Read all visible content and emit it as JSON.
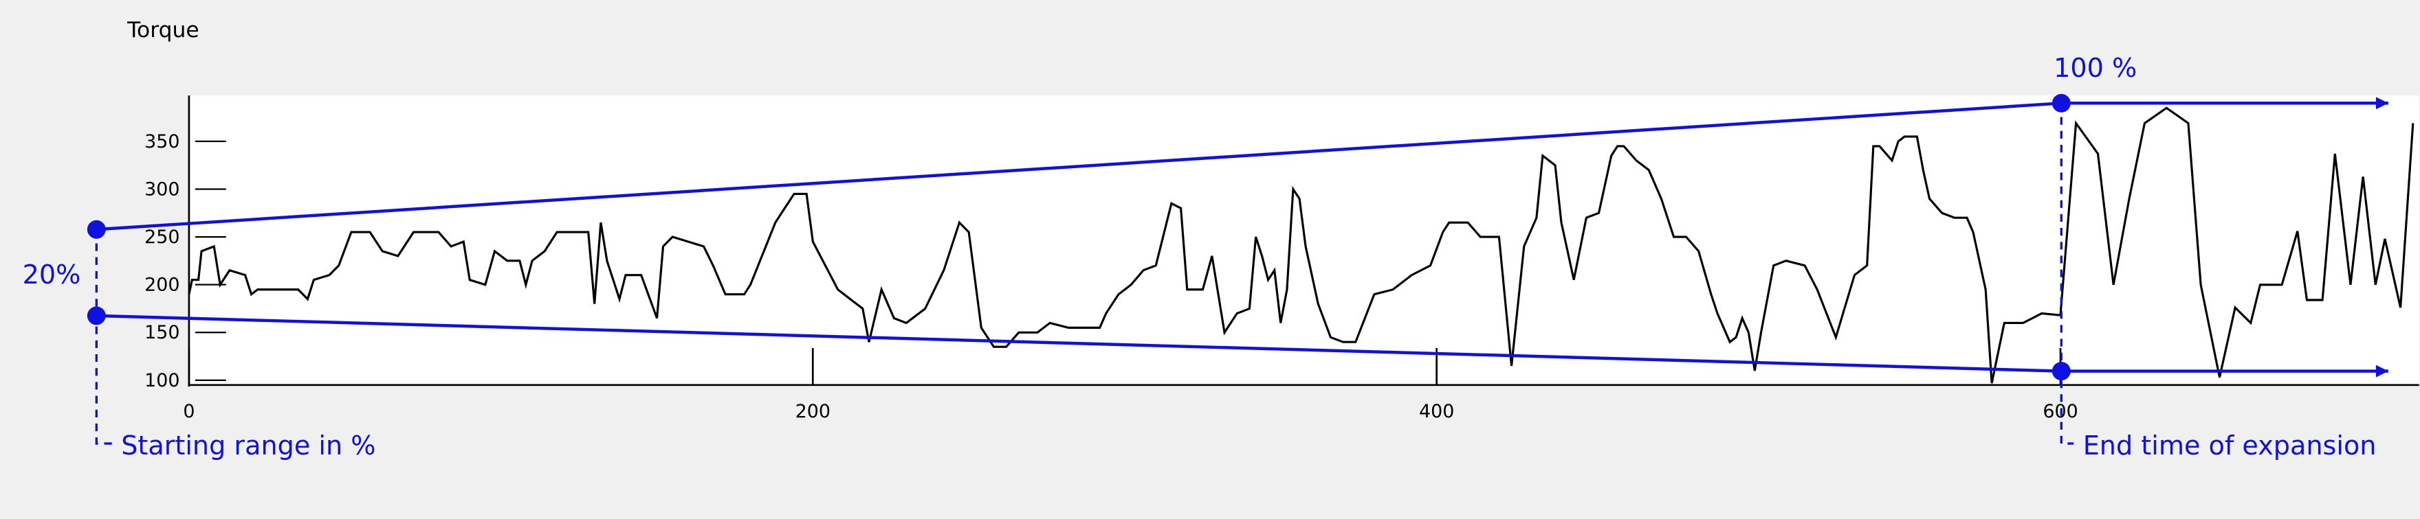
{
  "chart_data": {
    "type": "line",
    "title": "Torque",
    "annotations": [
      "20%",
      "100 %",
      "Starting range in %",
      "End time of expansion"
    ],
    "xlim": [
      0,
      715
    ],
    "xticks": [
      0,
      200,
      400,
      600
    ],
    "ylim": [
      95,
      398
    ],
    "yticks": [
      100,
      150,
      200,
      250,
      300,
      350
    ],
    "color": "#000000",
    "x": [
      0,
      1,
      3,
      4,
      8,
      10,
      13,
      18,
      20,
      22,
      28,
      35,
      38,
      40,
      45,
      48,
      52,
      58,
      62,
      67,
      72,
      80,
      84,
      88,
      90,
      95,
      98,
      102,
      106,
      108,
      110,
      114,
      118,
      128,
      130,
      132,
      134,
      138,
      140,
      145,
      150,
      152,
      155,
      160,
      165,
      168,
      172,
      178,
      180,
      188,
      194,
      198,
      200,
      208,
      212,
      216,
      218,
      222,
      226,
      230,
      236,
      242,
      247,
      250,
      254,
      258,
      262,
      266,
      272,
      276,
      282,
      292,
      294,
      298,
      302,
      306,
      310,
      315,
      318,
      320,
      325,
      328,
      332,
      336,
      340,
      342,
      344,
      346,
      348,
      350,
      352,
      354,
      356,
      358,
      362,
      366,
      370,
      374,
      380,
      386,
      392,
      398,
      402,
      404,
      410,
      414,
      420,
      424,
      428,
      432,
      434,
      438,
      440,
      444,
      448,
      452,
      456,
      458,
      460,
      464,
      468,
      472,
      476,
      480,
      484,
      488,
      490,
      494,
      496,
      498,
      500,
      502,
      504,
      508,
      512,
      518,
      522,
      528,
      534,
      538,
      540,
      542,
      546,
      548,
      550,
      554,
      556,
      558,
      562,
      566,
      570,
      572,
      576,
      578,
      582,
      588,
      594,
      600,
      605,
      612,
      617,
      622,
      627,
      634,
      641,
      645,
      651,
      656,
      661,
      664,
      671,
      676,
      679,
      684,
      688,
      693,
      697,
      701,
      704,
      709,
      713
    ],
    "values": [
      190,
      205,
      205,
      235,
      240,
      200,
      215,
      210,
      190,
      195,
      195,
      195,
      185,
      205,
      210,
      220,
      255,
      255,
      235,
      230,
      255,
      255,
      240,
      245,
      205,
      200,
      235,
      225,
      225,
      200,
      225,
      235,
      255,
      255,
      180,
      265,
      225,
      185,
      210,
      210,
      165,
      240,
      250,
      245,
      240,
      220,
      190,
      190,
      200,
      265,
      295,
      295,
      245,
      195,
      185,
      175,
      140,
      195,
      165,
      160,
      175,
      215,
      265,
      255,
      155,
      135,
      135,
      150,
      150,
      160,
      155,
      155,
      170,
      190,
      200,
      215,
      220,
      285,
      280,
      195,
      195,
      230,
      150,
      170,
      175,
      250,
      230,
      205,
      215,
      160,
      195,
      300,
      290,
      240,
      180,
      145,
      140,
      140,
      190,
      195,
      210,
      220,
      255,
      265,
      265,
      250,
      250,
      115,
      240,
      270,
      335,
      325,
      265,
      205,
      270,
      275,
      335,
      345,
      345,
      330,
      320,
      290,
      250,
      250,
      235,
      190,
      170,
      140,
      145,
      165,
      150,
      110,
      150,
      220,
      225,
      220,
      195,
      145,
      210,
      220,
      345,
      345,
      330,
      350,
      355,
      355,
      320,
      290,
      275,
      270,
      270,
      255,
      195,
      97,
      160,
      160,
      170,
      168,
      369,
      337,
      200,
      289,
      369,
      385,
      369,
      200,
      103,
      176,
      160,
      200,
      200,
      256,
      184,
      184,
      337,
      200,
      313,
      200,
      248,
      176,
      369
    ]
  }
}
